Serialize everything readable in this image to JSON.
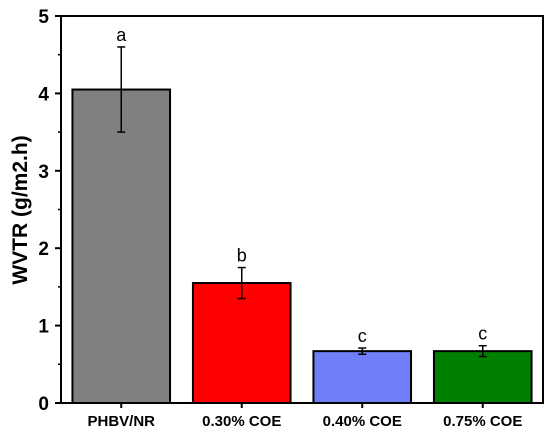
{
  "chart_data": {
    "type": "bar",
    "title": "",
    "xlabel": "",
    "ylabel": "WVTR (g/m2.h)",
    "ylim": [
      0,
      5
    ],
    "yticks": [
      "0",
      "1",
      "2",
      "3",
      "4",
      "5"
    ],
    "grid": false,
    "categories": [
      "PHBV/NR",
      "0.30% COE",
      "0.40% COE",
      "0.75% COE"
    ],
    "values": [
      4.05,
      1.55,
      0.67,
      0.67
    ],
    "errors": [
      0.55,
      0.2,
      0.04,
      0.07
    ],
    "significance_labels": [
      "a",
      "b",
      "c",
      "c"
    ],
    "colors": [
      "#808080",
      "#ff0000",
      "#6f7ff7",
      "#008000"
    ]
  }
}
